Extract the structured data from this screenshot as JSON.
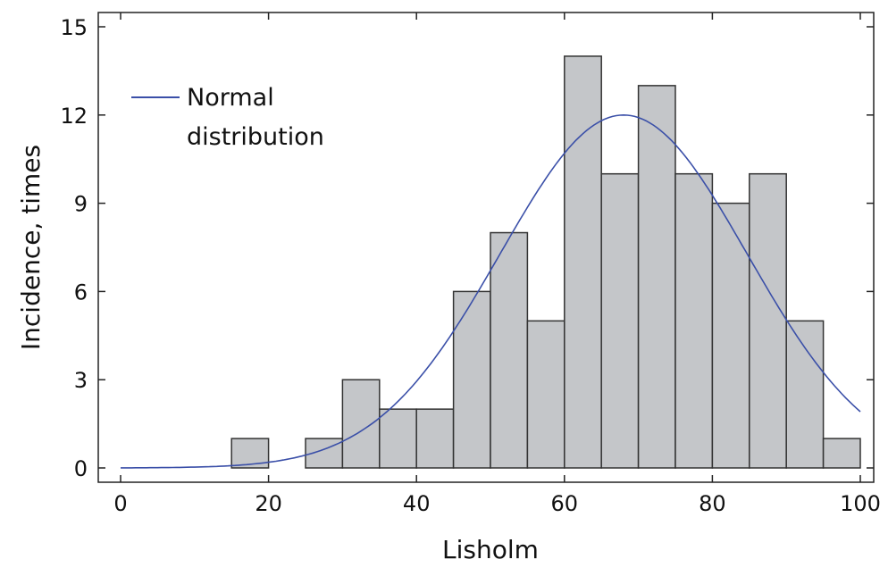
{
  "chart_data": {
    "type": "bar",
    "title": "",
    "xlabel": "Lisholm",
    "ylabel": "Incidence, times",
    "xlim": [
      0,
      100
    ],
    "ylim": [
      0,
      15
    ],
    "xticks": [
      0,
      20,
      40,
      60,
      80,
      100
    ],
    "yticks": [
      0,
      3,
      6,
      9,
      12,
      15
    ],
    "bin_width": 5,
    "bins": [
      {
        "start": 15,
        "value": 1
      },
      {
        "start": 20,
        "value": 0
      },
      {
        "start": 25,
        "value": 1
      },
      {
        "start": 30,
        "value": 3
      },
      {
        "start": 35,
        "value": 2
      },
      {
        "start": 40,
        "value": 2
      },
      {
        "start": 45,
        "value": 6
      },
      {
        "start": 50,
        "value": 8
      },
      {
        "start": 55,
        "value": 5
      },
      {
        "start": 60,
        "value": 14
      },
      {
        "start": 65,
        "value": 10
      },
      {
        "start": 70,
        "value": 13
      },
      {
        "start": 75,
        "value": 10
      },
      {
        "start": 80,
        "value": 9
      },
      {
        "start": 85,
        "value": 10
      },
      {
        "start": 90,
        "value": 5
      },
      {
        "start": 95,
        "value": 1
      }
    ],
    "normal_curve": {
      "name": "Normal distribution",
      "mean": 68,
      "sd": 16.7,
      "peak": 12,
      "x_range": [
        0,
        100
      ],
      "color": "#3a4fa8"
    },
    "legend": {
      "entries": [
        "Normal",
        "distribution"
      ],
      "placement": "top-left"
    },
    "bar_color": "#c4c6c9",
    "bar_edge": "#333333",
    "grid": false
  }
}
